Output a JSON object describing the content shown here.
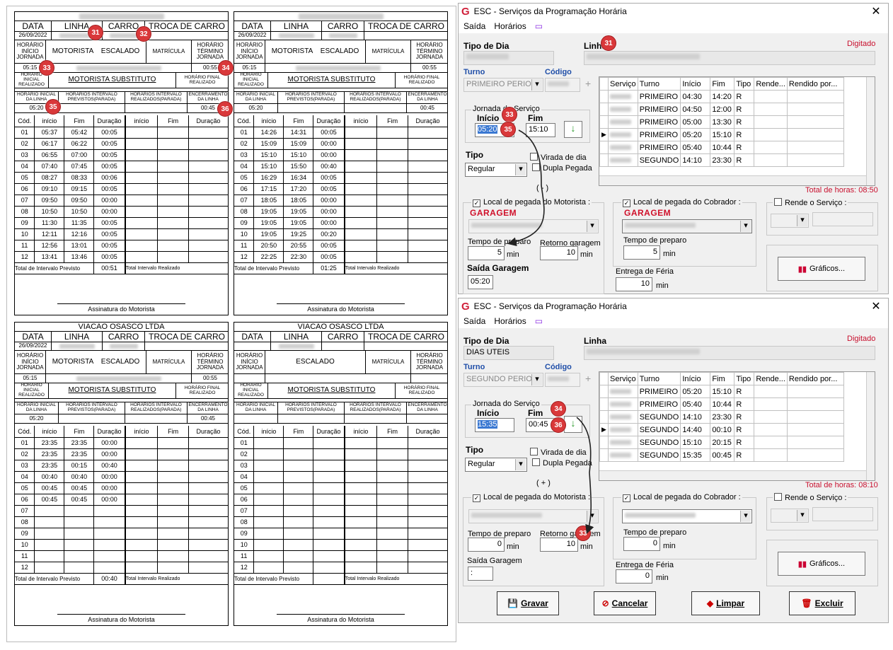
{
  "labels": {
    "data": "DATA",
    "linha": "LINHA",
    "carro": "CARRO",
    "troca": "TROCA DE CARRO",
    "inicio_jornada": "HORÁRIO INÍCIO JORNADA",
    "motorista": "MOTORISTA",
    "escalado": "ESCALADO",
    "matricula": "MATRÍCULA",
    "termino_jornada": "HORÁRIO TÉRMINO JORNADA",
    "inicial_realizado": "HORÁRIO INICIAL REALIZADO",
    "substituto": "MOTORISTA SUBSTITUTO",
    "final_realizado": "HORÁRIO FINAL REALIZADO",
    "inicial_linha": "HORÁRIO INICIAL DA LINHA",
    "previstos": "HORÁRIOS INTERVALO PREVISTOS(PARADA)",
    "realizados": "HORÁRIOS INTERVALO REALIZADOS(PARADA)",
    "encerramento": "ENCERRAMENTO DA LINHA",
    "cod": "Cód.",
    "inicio": "Início",
    "fim": "Fim",
    "duracao": "Duração",
    "inicio_l": "início",
    "total_previsto": "Total de Intervalo Previsto",
    "total_realizado": "Total Intervalo Realizado",
    "assinatura": "Assinatura do Motorista"
  },
  "cards": [
    {
      "company": "",
      "date": "26/09/2022",
      "start": "05:15",
      "end": "00:55",
      "inicio_linha": "05:20",
      "encerramento": "00:45",
      "total": "00:51",
      "show_motorista": true,
      "rows": [
        [
          "01",
          "05:37",
          "05:42",
          "00:05"
        ],
        [
          "02",
          "06:17",
          "06:22",
          "00:05"
        ],
        [
          "03",
          "06:55",
          "07:00",
          "00:05"
        ],
        [
          "04",
          "07:40",
          "07:45",
          "00:05"
        ],
        [
          "05",
          "08:27",
          "08:33",
          "00:06"
        ],
        [
          "06",
          "09:10",
          "09:15",
          "00:05"
        ],
        [
          "07",
          "09:50",
          "09:50",
          "00:00"
        ],
        [
          "08",
          "10:50",
          "10:50",
          "00:00"
        ],
        [
          "09",
          "11:30",
          "11:35",
          "00:05"
        ],
        [
          "10",
          "12:11",
          "12:16",
          "00:05"
        ],
        [
          "11",
          "12:56",
          "13:01",
          "00:05"
        ],
        [
          "12",
          "13:41",
          "13:46",
          "00:05"
        ]
      ]
    },
    {
      "company": "",
      "date": "26/09/2022",
      "start": "05:15",
      "end": "00:55",
      "inicio_linha": "05:20",
      "encerramento": "00:45",
      "total": "01:25",
      "show_motorista": true,
      "rows": [
        [
          "01",
          "14:26",
          "14:31",
          "00:05"
        ],
        [
          "02",
          "15:09",
          "15:09",
          "00:00"
        ],
        [
          "03",
          "15:10",
          "15:10",
          "00:00"
        ],
        [
          "04",
          "15:10",
          "15:50",
          "00:40"
        ],
        [
          "05",
          "16:29",
          "16:34",
          "00:05"
        ],
        [
          "06",
          "17:15",
          "17:20",
          "00:05"
        ],
        [
          "07",
          "18:05",
          "18:05",
          "00:00"
        ],
        [
          "08",
          "19:05",
          "19:05",
          "00:00"
        ],
        [
          "09",
          "19:05",
          "19:05",
          "00:00"
        ],
        [
          "10",
          "19:05",
          "19:25",
          "00:20"
        ],
        [
          "11",
          "20:50",
          "20:55",
          "00:05"
        ],
        [
          "12",
          "22:25",
          "22:30",
          "00:05"
        ]
      ]
    },
    {
      "company": "VIACAO OSASCO LTDA",
      "date": "26/09/2022",
      "start": "05:15",
      "end": "00:55",
      "inicio_linha": "05:20",
      "encerramento": "00:45",
      "total": "00:40",
      "show_motorista": true,
      "rows": [
        [
          "01",
          "23:35",
          "23:35",
          "00:00"
        ],
        [
          "02",
          "23:35",
          "23:35",
          "00:00"
        ],
        [
          "03",
          "23:35",
          "00:15",
          "00:40"
        ],
        [
          "04",
          "00:40",
          "00:40",
          "00:00"
        ],
        [
          "05",
          "00:45",
          "00:45",
          "00:00"
        ],
        [
          "06",
          "00:45",
          "00:45",
          "00:00"
        ],
        [
          "07",
          "",
          "",
          ""
        ],
        [
          "08",
          "",
          "",
          ""
        ],
        [
          "09",
          "",
          "",
          ""
        ],
        [
          "10",
          "",
          "",
          ""
        ],
        [
          "11",
          "",
          "",
          ""
        ],
        [
          "12",
          "",
          "",
          ""
        ]
      ]
    },
    {
      "company": "VIACAO OSASCO LTDA",
      "date": "",
      "start": "",
      "end": "",
      "inicio_linha": "",
      "encerramento": "",
      "total": "",
      "show_motorista": false,
      "rows": [
        [
          "01",
          "",
          "",
          ""
        ],
        [
          "02",
          "",
          "",
          ""
        ],
        [
          "03",
          "",
          "",
          ""
        ],
        [
          "04",
          "",
          "",
          ""
        ],
        [
          "05",
          "",
          "",
          ""
        ],
        [
          "06",
          "",
          "",
          ""
        ],
        [
          "07",
          "",
          "",
          ""
        ],
        [
          "08",
          "",
          "",
          ""
        ],
        [
          "09",
          "",
          "",
          ""
        ],
        [
          "10",
          "",
          "",
          ""
        ],
        [
          "11",
          "",
          "",
          ""
        ],
        [
          "12",
          "",
          "",
          ""
        ]
      ]
    }
  ],
  "win": {
    "title": "ESC - Serviços da Programação Horária",
    "menu_saida": "Saída",
    "menu_horarios": "Horários",
    "tipo_dia": "Tipo de Dia",
    "linha": "Linha",
    "digitado": "Digitado",
    "turno": "Turno",
    "codigo": "Código",
    "jornada": "Jornada do Serviço",
    "inicio": "Início",
    "fim": "Fim",
    "tipo": "Tipo",
    "tipo_val": "Regular",
    "virada": "Virada de dia",
    "dupla": "Dupla Pegada",
    "cols": [
      "Serviço",
      "Turno",
      "Início",
      "Fim",
      "Tipo",
      "Rende...",
      "Rendido por..."
    ],
    "local_motorista": "Local de pegada do Motorista :",
    "local_cobrador": "Local de pegada do Cobrador :",
    "rende": "Rende o Serviço :",
    "garagem": "GARAGEM",
    "tempo_preparo": "Tempo de preparo",
    "retorno": "Retorno garagem",
    "min": "min",
    "saida_garagem": "Saída Garagem",
    "entrega": "Entrega de Féria",
    "graficos": "Gráficos..."
  },
  "win1": {
    "tipo_dia_val": "",
    "turno_val": "PRIMEIRO PERIOD",
    "inicio_val": "05:20",
    "fim_val": "15:10",
    "rows": [
      [
        "PRIMEIRO",
        "04:30",
        "14:20",
        "R"
      ],
      [
        "PRIMEIRO",
        "04:50",
        "12:00",
        "R"
      ],
      [
        "PRIMEIRO",
        "05:00",
        "13:30",
        "R"
      ],
      [
        "PRIMEIRO",
        "05:20",
        "15:10",
        "R"
      ],
      [
        "PRIMEIRO",
        "05:40",
        "10:44",
        "R"
      ],
      [
        "SEGUNDO",
        "14:10",
        "23:30",
        "R"
      ]
    ],
    "total": "Total de horas: 08:50",
    "sign": "( - )",
    "prep_mot": "5",
    "retorno_val": "10",
    "prep_cob": "5",
    "saida_val": "05:20",
    "entrega_val": "10"
  },
  "win2": {
    "tipo_dia_val": "DIAS UTEIS",
    "turno_val": "SEGUNDO PERIOD",
    "inicio_val": "15:35",
    "fim_val": "00:45",
    "rows": [
      [
        "PRIMEIRO",
        "05:20",
        "15:10",
        "R"
      ],
      [
        "PRIMEIRO",
        "05:40",
        "10:44",
        "R"
      ],
      [
        "SEGUNDO",
        "14:10",
        "23:30",
        "R"
      ],
      [
        "SEGUNDO",
        "14:40",
        "00:10",
        "R"
      ],
      [
        "SEGUNDO",
        "15:10",
        "20:15",
        "R"
      ],
      [
        "SEGUNDO",
        "15:35",
        "00:45",
        "R"
      ]
    ],
    "total": "Total de horas: 08:10",
    "sign": "( + )",
    "prep_mot": "0",
    "retorno_val": "10",
    "prep_cob": "0",
    "saida_val": ":",
    "entrega_val": "0"
  },
  "buttons": {
    "gravar": "Gravar",
    "cancelar": "Cancelar",
    "limpar": "Limpar",
    "excluir": "Excluir"
  },
  "badges": {
    "b31": "31",
    "b32": "32",
    "b33": "33",
    "b34": "34",
    "b35": "35",
    "b36": "36"
  }
}
